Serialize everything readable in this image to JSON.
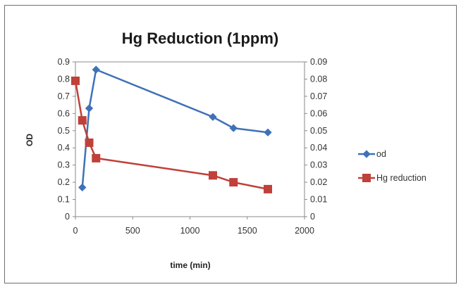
{
  "chart_data": {
    "type": "line",
    "title": "Hg Reduction  (1ppm)",
    "xlabel": "time (min)",
    "ylabel": "OD",
    "y2label": "",
    "xlim": [
      0,
      2000
    ],
    "ylim": [
      0,
      0.9
    ],
    "y2lim": [
      0,
      0.09
    ],
    "x_ticks": [
      "0",
      "500",
      "1000",
      "1500",
      "2000"
    ],
    "y_ticks": [
      "0",
      "0.1",
      "0.2",
      "0.3",
      "0.4",
      "0.5",
      "0.6",
      "0.7",
      "0.8",
      "0.9"
    ],
    "y2_ticks": [
      "0",
      "0.01",
      "0.02",
      "0.03",
      "0.04",
      "0.05",
      "0.06",
      "0.07",
      "0.08",
      "0.09"
    ],
    "grid": false,
    "legend_position": "right",
    "series": [
      {
        "name": "od",
        "axis": "left",
        "color": "#3f71b8",
        "marker": "diamond",
        "x": [
          60,
          120,
          180,
          1200,
          1380,
          1680
        ],
        "y": [
          0.17,
          0.63,
          0.855,
          0.58,
          0.515,
          0.49
        ]
      },
      {
        "name": "Hg reduction",
        "axis": "right",
        "color": "#c0403a",
        "marker": "square",
        "x": [
          0,
          60,
          120,
          180,
          1200,
          1380,
          1680
        ],
        "y": [
          0.079,
          0.056,
          0.043,
          0.034,
          0.024,
          0.02,
          0.016
        ]
      }
    ]
  }
}
